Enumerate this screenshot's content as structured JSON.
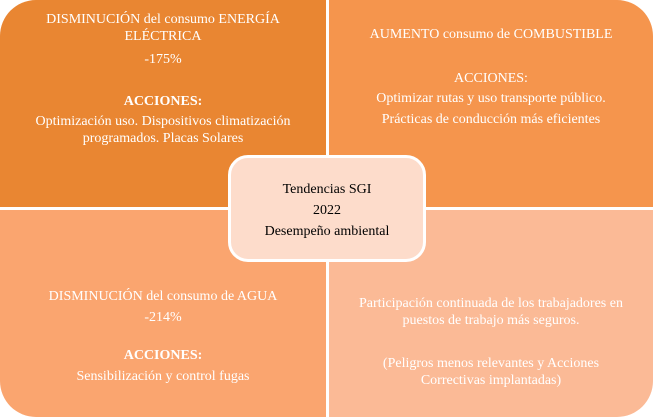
{
  "colors": {
    "top_left": "#E98632",
    "top_right": "#F5954D",
    "bottom_left": "#FAA56F",
    "bottom_right": "#FBBA96",
    "center": "#FDDCCB"
  },
  "center": {
    "line1": "Tendencias SGI",
    "line2": "2022",
    "line3": "Desempeño ambiental"
  },
  "top_left": {
    "title1": "DISMINUCIÓN del consumo ENERGÍA",
    "title2": "ELÉCTRICA",
    "value": "-175%",
    "actions_label": "ACCIONES:",
    "actions1": "Optimización uso. Dispositivos climatización",
    "actions2": "programados. Placas Solares"
  },
  "top_right": {
    "title": "AUMENTO consumo de COMBUSTIBLE",
    "actions_label": "ACCIONES:",
    "actions1": "Optimizar rutas y uso transporte público.",
    "actions2": "Prácticas de conducción más eficientes"
  },
  "bottom_left": {
    "title": "DISMINUCIÓN del consumo de AGUA",
    "value": "-214%",
    "actions_label": "ACCIONES:",
    "actions1": "Sensibilización y control fugas"
  },
  "bottom_right": {
    "text1": "Participación continuada de los trabajadores en",
    "text2": "puestos de trabajo más seguros.",
    "note1": "(Peligros menos relevantes y Acciones",
    "note2": "Correctivas implantadas)"
  }
}
